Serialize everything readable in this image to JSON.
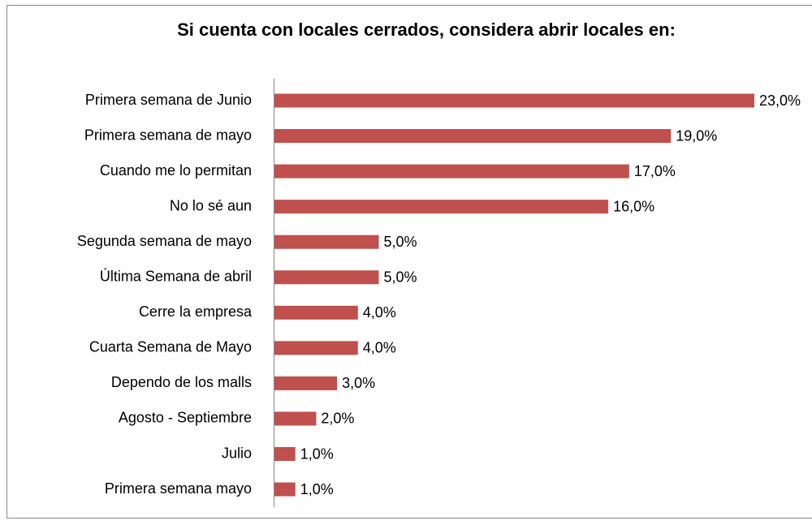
{
  "chart_data": {
    "type": "bar",
    "orientation": "horizontal",
    "title": "Si cuenta con locales cerrados, considera abrir locales en:",
    "categories": [
      "Primera semana de Junio",
      "Primera semana de mayo",
      "Cuando me lo permitan",
      "No lo sé aun",
      "Segunda semana de mayo",
      "Última Semana de abril",
      "Cerre la empresa",
      "Cuarta Semana de Mayo",
      "Dependo de los malls",
      "Agosto - Septiembre",
      "Julio",
      "Primera semana mayo"
    ],
    "values": [
      23,
      19,
      17,
      16,
      5,
      5,
      4,
      4,
      3,
      2,
      1,
      1
    ],
    "value_labels": [
      "23,0%",
      "19,0%",
      "17,0%",
      "16,0%",
      "5,0%",
      "5,0%",
      "4,0%",
      "4,0%",
      "3,0%",
      "2,0%",
      "1,0%",
      "1,0%"
    ],
    "color": "#c0504d"
  }
}
